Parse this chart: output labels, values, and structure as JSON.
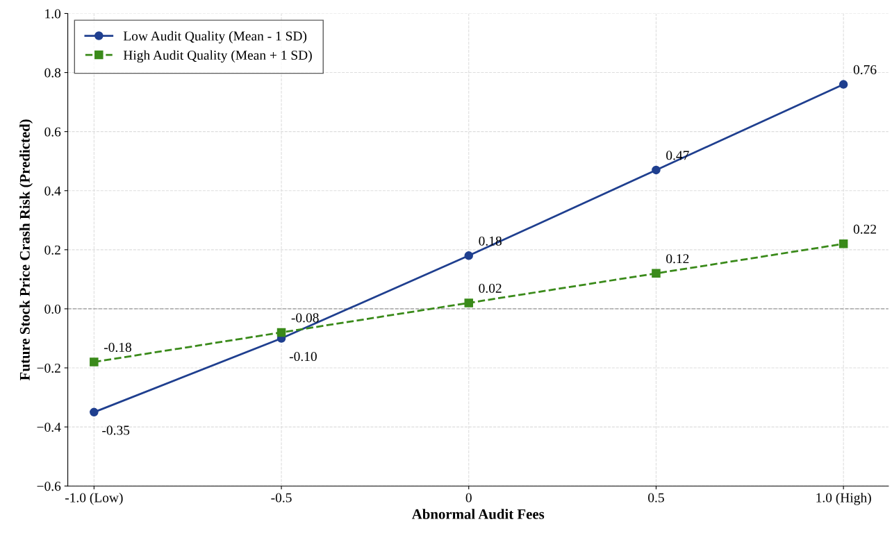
{
  "chart_data": {
    "type": "line",
    "xlabel": "Abnormal Audit Fees",
    "ylabel": "Future Stock Price Crash Risk (Predicted)",
    "x": [
      -1.0,
      -0.5,
      0,
      0.5,
      1.0
    ],
    "series": [
      {
        "name": "Low Audit Quality (Mean - 1 SD)",
        "color": "#1f3f8f",
        "values": [
          -0.35,
          -0.1,
          0.18,
          0.47,
          0.76
        ],
        "value_labels": [
          "-0.35",
          "-0.10",
          "0.18",
          "0.47",
          "0.76"
        ],
        "marker": "circle",
        "line_style": "solid"
      },
      {
        "name": "High Audit Quality (Mean + 1 SD)",
        "color": "#3a8a1a",
        "values": [
          -0.18,
          -0.08,
          0.02,
          0.12,
          0.22
        ],
        "value_labels": [
          "-0.18",
          "-0.08",
          "0.02",
          "0.12",
          "0.22"
        ],
        "marker": "square",
        "line_style": "dashed"
      }
    ],
    "xlim": [
      -1.07,
      1.12
    ],
    "xticks": [
      {
        "value": -1.0,
        "label": "-1.0 (Low)"
      },
      {
        "value": -0.5,
        "label": "-0.5"
      },
      {
        "value": 0,
        "label": "0"
      },
      {
        "value": 0.5,
        "label": "0.5"
      },
      {
        "value": 1.0,
        "label": "1.0 (High)"
      }
    ],
    "ylim": [
      -0.6,
      1.0
    ],
    "yticks": [
      {
        "value": -0.6,
        "label": "−0.6"
      },
      {
        "value": -0.4,
        "label": "−0.4"
      },
      {
        "value": -0.2,
        "label": "−0.2"
      },
      {
        "value": 0.0,
        "label": "0.0"
      },
      {
        "value": 0.2,
        "label": "0.2"
      },
      {
        "value": 0.4,
        "label": "0.4"
      },
      {
        "value": 0.6,
        "label": "0.6"
      },
      {
        "value": 0.8,
        "label": "0.8"
      },
      {
        "value": 1.0,
        "label": "1.0"
      }
    ],
    "ref_lines": [
      {
        "axis": "y",
        "value": 0,
        "label": null,
        "color": "#999999",
        "line_style": "dashed"
      }
    ],
    "grid": true,
    "legend": "top left"
  }
}
